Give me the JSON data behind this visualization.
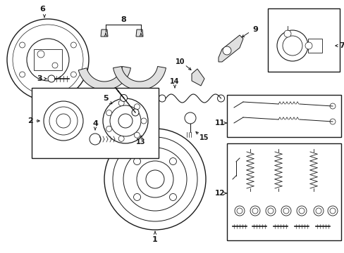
{
  "bg": "#ffffff",
  "lc": "#1a1a1a",
  "fig_w": 4.89,
  "fig_h": 3.6,
  "dpi": 100,
  "xmax": 489,
  "ymax": 360
}
